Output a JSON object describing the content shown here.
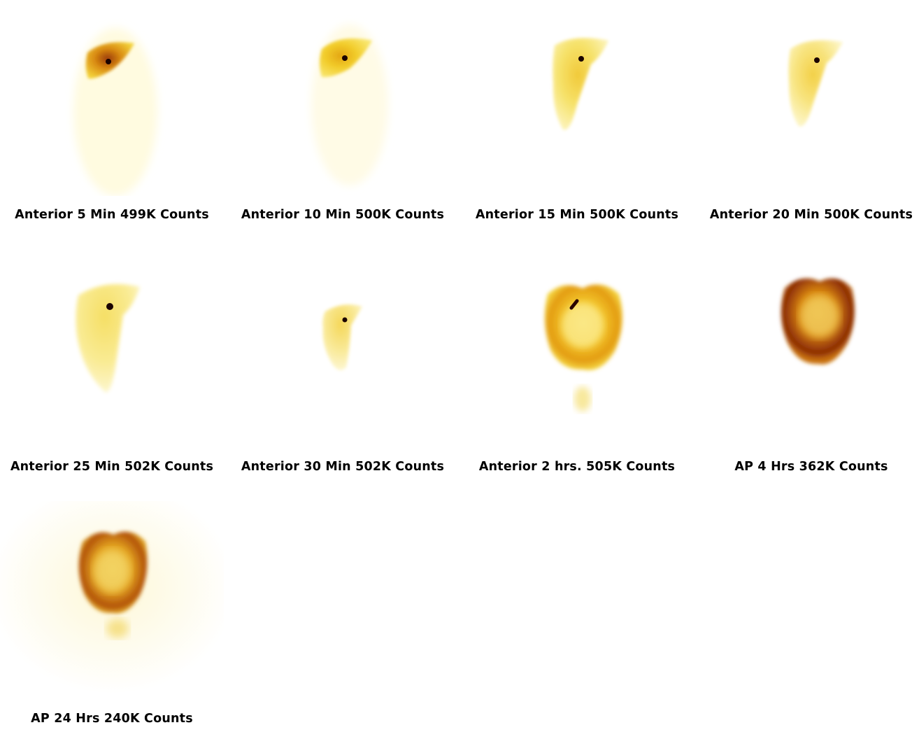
{
  "panels": [
    {
      "caption": "Anterior 5 Min 499K Counts"
    },
    {
      "caption": "Anterior 10 Min 500K Counts"
    },
    {
      "caption": "Anterior 15 Min 500K Counts"
    },
    {
      "caption": "Anterior 20 Min 500K Counts"
    },
    {
      "caption": "Anterior 25 Min 502K Counts"
    },
    {
      "caption": "Anterior 30 Min 502K Counts"
    },
    {
      "caption": "Anterior 2 hrs. 505K Counts"
    },
    {
      "caption": "AP 4 Hrs 362K Counts"
    },
    {
      "caption": "AP 24 Hrs 240K Counts"
    }
  ],
  "colors": {
    "background": "#ffffff",
    "low": "#fff7b0",
    "mid": "#f2c21a",
    "high": "#b8520c",
    "peak": "#3a0600",
    "caption": "#000000"
  }
}
